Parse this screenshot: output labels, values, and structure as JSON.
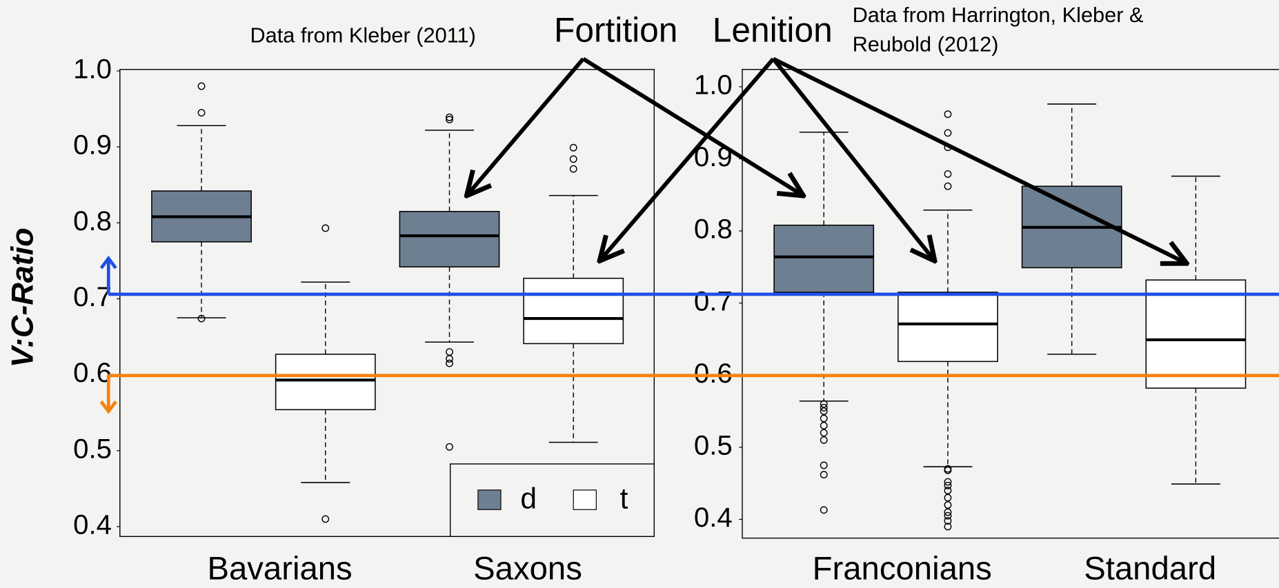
{
  "chart_data": [
    {
      "type": "boxplot",
      "title": "Data from Kleber (2011)",
      "y_label": "V:C-Ratio",
      "categories": [
        "Bavarians",
        "Saxons"
      ],
      "ylim": [
        0.387,
        1.002
      ],
      "yticks": [
        0.4,
        0.5,
        0.6,
        0.7,
        0.8,
        0.9,
        {
          "value": 1,
          "label": "1.0"
        }
      ],
      "legend": "lower right",
      "series": [
        {
          "name": "d",
          "color": "#6e7f91",
          "boxes": [
            {
              "low": 0.675,
              "q1": 0.775,
              "median": 0.808,
              "q3": 0.842,
              "high": 0.928,
              "outliers": [
                0.98,
                0.945,
                0.674
              ]
            },
            {
              "low": 0.643,
              "q1": 0.742,
              "median": 0.783,
              "q3": 0.815,
              "high": 0.922,
              "outliers": [
                0.939,
                0.936,
                0.63,
                0.621,
                0.615,
                0.505
              ]
            }
          ]
        },
        {
          "name": "t",
          "color": "#ffffff",
          "boxes": [
            {
              "low": 0.458,
              "q1": 0.554,
              "median": 0.593,
              "q3": 0.627,
              "high": 0.722,
              "outliers": [
                0.793,
                0.41
              ]
            },
            {
              "low": 0.511,
              "q1": 0.641,
              "median": 0.674,
              "q3": 0.727,
              "high": 0.836,
              "outliers": [
                0.899,
                0.884,
                0.871
              ]
            }
          ]
        }
      ],
      "reference_lines": [
        {
          "value": 0.706,
          "color": "#1f4fe6"
        },
        {
          "value": 0.599,
          "color": "#f5820f"
        }
      ]
    },
    {
      "type": "boxplot",
      "title": [
        "Data from Harrington, Kleber &",
        "Reubold (2012)"
      ],
      "categories": [
        "Franconians",
        "Standard"
      ],
      "ylim": [
        0.374,
        1.024
      ],
      "yticks": [
        0.4,
        0.5,
        0.6,
        0.7,
        0.8,
        0.9,
        {
          "value": 1,
          "label": "1.0"
        }
      ],
      "series": [
        {
          "color": "#6e7f91",
          "boxes": [
            {
              "low": 0.564,
              "q1": 0.715,
              "median": 0.764,
              "q3": 0.808,
              "high": 0.937,
              "outliers": [
                0.56,
                0.555,
                0.55,
                0.54,
                0.53,
                0.52,
                0.51,
                0.475,
                0.462,
                0.413
              ]
            },
            {
              "low": 0.629,
              "q1": 0.749,
              "median": 0.805,
              "q3": 0.862,
              "high": 0.976,
              "outliers": []
            }
          ]
        },
        {
          "color": "#ffffff",
          "boxes": [
            {
              "low": 0.473,
              "q1": 0.619,
              "median": 0.671,
              "q3": 0.715,
              "high": 0.829,
              "outliers": [
                0.962,
                0.936,
                0.916,
                0.879,
                0.862,
                0.47,
                0.468,
                0.452,
                0.447,
                0.44,
                0.43,
                0.42,
                0.41,
                0.405,
                0.398,
                0.39
              ]
            },
            {
              "low": 0.449,
              "q1": 0.582,
              "median": 0.649,
              "q3": 0.732,
              "high": 0.876,
              "outliers": []
            }
          ]
        }
      ]
    }
  ],
  "annotations": [
    "Fortition",
    "Lenition"
  ]
}
